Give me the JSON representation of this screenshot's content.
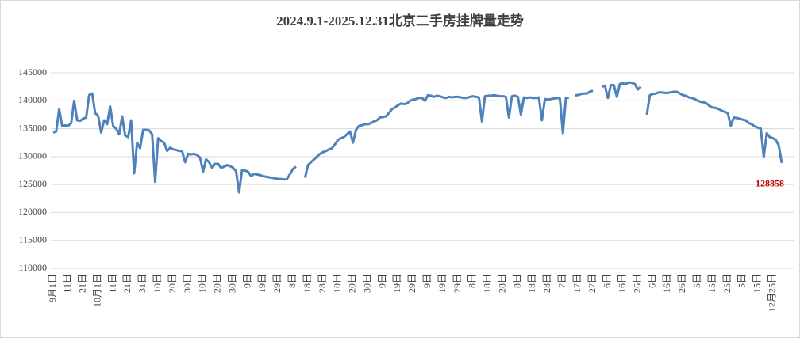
{
  "chart_data": {
    "type": "line",
    "title": "2024.9.1-2025.12.31北京二手房挂牌量走势",
    "ylim": [
      110000,
      145000
    ],
    "yticks": [
      110000,
      115000,
      120000,
      125000,
      130000,
      135000,
      140000,
      145000
    ],
    "grid": true,
    "show_last_value": true,
    "last_value_color": "#c00000",
    "categories": [
      "9月1日",
      null,
      null,
      null,
      null,
      "11日",
      null,
      null,
      null,
      null,
      "21日",
      null,
      null,
      null,
      null,
      "10月1日",
      null,
      null,
      null,
      null,
      "11日",
      null,
      null,
      null,
      null,
      "21日",
      null,
      null,
      null,
      null,
      "31日",
      null,
      null,
      null,
      null,
      "10日",
      null,
      null,
      null,
      null,
      "20日",
      null,
      null,
      null,
      null,
      "30日",
      null,
      null,
      null,
      null,
      "10日",
      null,
      null,
      null,
      null,
      "20日",
      null,
      null,
      null,
      null,
      "30日",
      null,
      null,
      null,
      null,
      "9日",
      null,
      null,
      null,
      null,
      "19日",
      null,
      null,
      null,
      null,
      "29日",
      null,
      null,
      null,
      null,
      "8日",
      null,
      null,
      null,
      null,
      "18日",
      null,
      null,
      null,
      null,
      "28日",
      null,
      null,
      null,
      null,
      "10日",
      null,
      null,
      null,
      null,
      "20日",
      null,
      null,
      null,
      null,
      "30日",
      null,
      null,
      null,
      null,
      "9日",
      null,
      null,
      null,
      null,
      "19日",
      null,
      null,
      null,
      null,
      "29日",
      null,
      null,
      null,
      null,
      "9日",
      null,
      null,
      null,
      null,
      "19日",
      null,
      null,
      null,
      null,
      "29日",
      null,
      null,
      null,
      null,
      "8日",
      null,
      null,
      null,
      null,
      "18日",
      null,
      null,
      null,
      null,
      "28日",
      null,
      null,
      null,
      null,
      "8日",
      null,
      null,
      null,
      null,
      "18日",
      null,
      null,
      null,
      null,
      "28日",
      null,
      null,
      null,
      null,
      "7日",
      null,
      null,
      null,
      null,
      "17日",
      null,
      null,
      null,
      null,
      "27日",
      null,
      null,
      null,
      null,
      "6日",
      null,
      null,
      null,
      null,
      "16日",
      null,
      null,
      null,
      null,
      "26日",
      null,
      null,
      null,
      null,
      "6日",
      null,
      null,
      null,
      null,
      "16日",
      null,
      null,
      null,
      null,
      "26日",
      null,
      null,
      null,
      null,
      "5日",
      null,
      null,
      null,
      null,
      "15日",
      null,
      null,
      null,
      null,
      "25日",
      null,
      null,
      null,
      null,
      "5日",
      null,
      null,
      null,
      null,
      "15日",
      null,
      null,
      null,
      null,
      "12月25日",
      null,
      null,
      null
    ],
    "series": [
      {
        "color": "#4f81bd",
        "values": [
          134300,
          134500,
          138500,
          135500,
          135600,
          135500,
          136000,
          140000,
          136500,
          136400,
          136800,
          137000,
          141000,
          141300,
          137800,
          137300,
          134300,
          136500,
          135800,
          139000,
          135500,
          135000,
          134000,
          137200,
          133800,
          133500,
          136500,
          127000,
          132500,
          131500,
          134800,
          134800,
          134700,
          134000,
          125500,
          133300,
          132800,
          132500,
          131000,
          131600,
          131300,
          131200,
          131000,
          131000,
          129000,
          130500,
          130400,
          130500,
          130300,
          129800,
          127300,
          129500,
          129000,
          128000,
          128700,
          128700,
          128000,
          128200,
          128500,
          128300,
          128000,
          127400,
          123600,
          127600,
          127500,
          127300,
          126500,
          126900,
          126800,
          126700,
          126500,
          126400,
          126300,
          126200,
          126100,
          126000,
          126000,
          125900,
          126000,
          126900,
          127800,
          128200,
          null,
          null,
          126200,
          128500,
          129000,
          129500,
          130000,
          130500,
          130800,
          131000,
          131300,
          131500,
          132200,
          133000,
          133300,
          133500,
          134000,
          134500,
          132500,
          134800,
          135500,
          135600,
          135800,
          135800,
          136000,
          136300,
          136500,
          137000,
          137100,
          137200,
          137800,
          138500,
          138800,
          139200,
          139500,
          139400,
          139500,
          140000,
          140200,
          140300,
          140500,
          140500,
          140000,
          141000,
          140900,
          140700,
          140900,
          140800,
          140600,
          140500,
          140700,
          140600,
          140700,
          140700,
          140600,
          140500,
          140500,
          140700,
          140800,
          140700,
          140600,
          136300,
          140800,
          140900,
          140900,
          141000,
          140900,
          140800,
          140800,
          140700,
          137000,
          140800,
          140900,
          140700,
          137500,
          140600,
          140500,
          140600,
          140500,
          140500,
          140600,
          136500,
          140300,
          140200,
          140300,
          140400,
          140500,
          140400,
          134200,
          140500,
          140500,
          null,
          141000,
          141000,
          141200,
          141300,
          141300,
          141600,
          141800,
          null,
          null,
          142500,
          142700,
          140500,
          142800,
          142800,
          140700,
          143000,
          143100,
          143000,
          143300,
          143200,
          143000,
          142000,
          142500,
          null,
          137500,
          141000,
          141200,
          141300,
          141500,
          141500,
          141400,
          141400,
          141500,
          141600,
          141600,
          141300,
          141000,
          140900,
          140600,
          140500,
          140300,
          140000,
          139800,
          139700,
          139500,
          139000,
          138800,
          138700,
          138500,
          138200,
          138000,
          137800,
          135500,
          137000,
          136900,
          136800,
          136600,
          136500,
          136000,
          135800,
          135400,
          135200,
          135000,
          130000,
          134200,
          133500,
          133300,
          133000,
          132000,
          128858
        ]
      }
    ]
  }
}
